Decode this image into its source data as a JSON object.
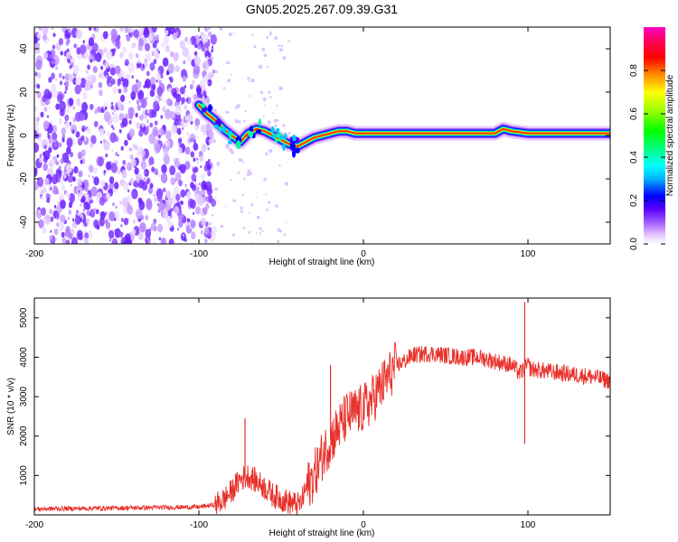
{
  "title": "GN05.2025.267.09.39.G31",
  "chart_data": [
    {
      "type": "heatmap",
      "xlabel": "Height of straight line (km)",
      "ylabel": "Frequency (Hz)",
      "xlim": [
        -200,
        150
      ],
      "ylim": [
        -50,
        50
      ],
      "xticks": [
        "-200",
        "-100",
        "0",
        "100"
      ],
      "xtick_values": [
        -200,
        -100,
        0,
        100
      ],
      "yticks": [
        "-40",
        "-20",
        "0",
        "20",
        "40"
      ],
      "ytick_values": [
        -40,
        -20,
        0,
        20,
        40
      ],
      "colorbar": {
        "label": "Normalized spectral amplitude",
        "range": [
          0,
          1
        ],
        "ticks": [
          "0.0",
          "0.2",
          "0.4",
          "0.6",
          "0.8"
        ],
        "tick_values": [
          0.0,
          0.2,
          0.4,
          0.6,
          0.8
        ],
        "colors": [
          "#ffffff",
          "#e6c8ff",
          "#a05aff",
          "#5a00ff",
          "#0000ff",
          "#00b4ff",
          "#00ffff",
          "#00ff7f",
          "#00ff00",
          "#a0ff00",
          "#ffff00",
          "#ff8c00",
          "#ff0000",
          "#ff0060",
          "#ff00c8"
        ]
      },
      "ridge": {
        "x": [
          -100,
          -95,
          -90,
          -85,
          -80,
          -75,
          -70,
          -65,
          -60,
          -55,
          -50,
          -45,
          -40,
          -35,
          -30,
          -25,
          -20,
          -15,
          -10,
          -5,
          0,
          10,
          20,
          40,
          60,
          80,
          85,
          90,
          100,
          120,
          150
        ],
        "y": [
          14,
          10,
          7,
          3,
          0,
          -3,
          1,
          3,
          2,
          0,
          -2,
          -4,
          -5,
          -3,
          -1,
          0,
          1,
          2,
          2,
          1,
          1,
          1,
          1,
          1,
          1,
          1,
          3,
          2,
          1,
          1,
          1
        ]
      },
      "noise_region_x": [
        -200,
        -95
      ]
    },
    {
      "type": "line",
      "xlabel": "Height of straight line (km)",
      "ylabel": "SNR (10 * v/v)",
      "xlim": [
        -200,
        150
      ],
      "ylim": [
        0,
        5500
      ],
      "xticks": [
        "-200",
        "-100",
        "0",
        "100"
      ],
      "xtick_values": [
        -200,
        -100,
        0,
        100
      ],
      "yticks": [
        "1000",
        "2000",
        "3000",
        "4000",
        "5000"
      ],
      "ytick_values": [
        1000,
        2000,
        3000,
        4000,
        5000
      ],
      "color": "#e8302a",
      "series": [
        {
          "x": [
            -200,
            -180,
            -160,
            -140,
            -120,
            -100,
            -90,
            -85,
            -80,
            -75,
            -70,
            -65,
            -60,
            -55,
            -50,
            -45,
            -40,
            -38,
            -35,
            -30,
            -25,
            -20,
            -15,
            -10,
            -5,
            0,
            5,
            10,
            15,
            20,
            25,
            30,
            40,
            50,
            60,
            70,
            80,
            90,
            95,
            98,
            100,
            102,
            110,
            120,
            130,
            140,
            150
          ],
          "y": [
            150,
            160,
            170,
            180,
            190,
            200,
            260,
            380,
            600,
            900,
            1000,
            850,
            700,
            500,
            400,
            320,
            260,
            300,
            650,
            1000,
            1500,
            1900,
            2200,
            2500,
            2600,
            2700,
            2900,
            3200,
            3500,
            3800,
            3900,
            4050,
            4100,
            4050,
            4000,
            4000,
            3900,
            3800,
            3600,
            3700,
            3800,
            3700,
            3650,
            3600,
            3550,
            3500,
            3400
          ]
        }
      ],
      "spikes": [
        {
          "x": -72,
          "y": 2450
        },
        {
          "x": -20,
          "y": 3800
        },
        {
          "x": 98,
          "y": 5400
        },
        {
          "x": 98,
          "y": 1800
        }
      ]
    }
  ]
}
